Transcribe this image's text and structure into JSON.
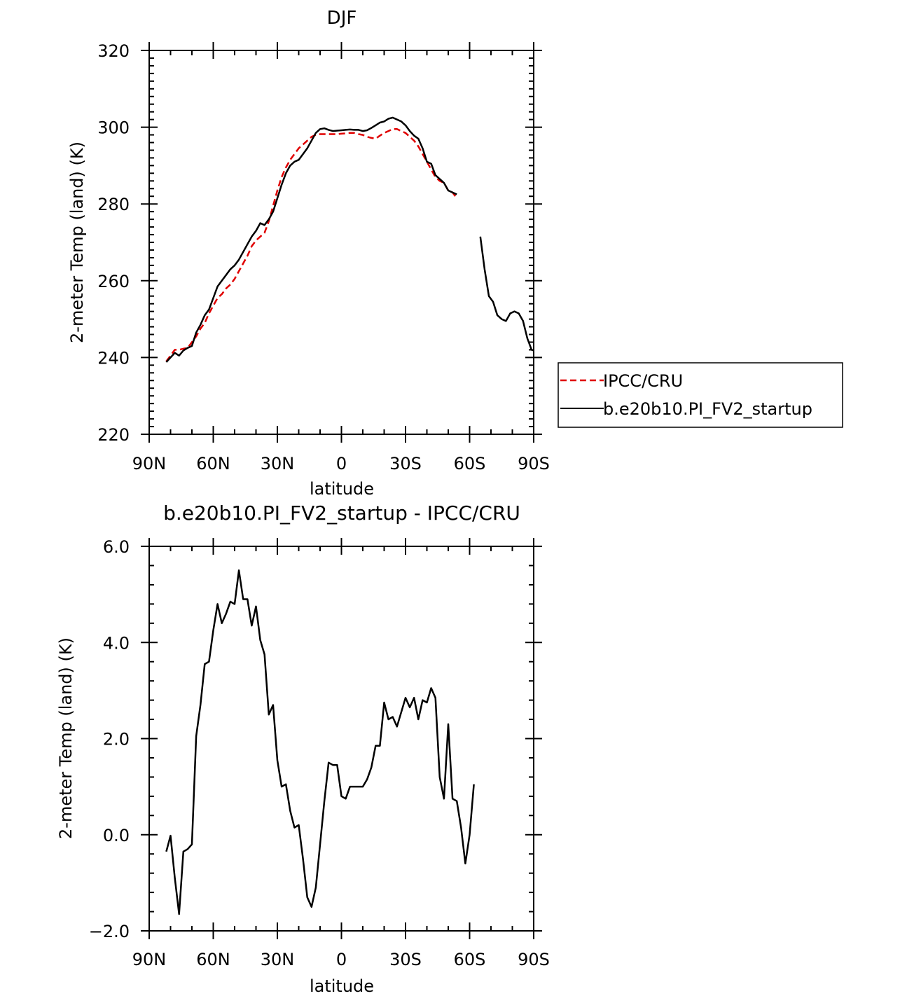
{
  "chart_data": [
    {
      "type": "line",
      "title": "DJF",
      "xlabel": "latitude",
      "ylabel": "2-meter Temp (land) (K)",
      "xlim": [
        90,
        -90
      ],
      "ylim": [
        220,
        320
      ],
      "x_ticks": [
        {
          "value": 90,
          "label": "90N"
        },
        {
          "value": 60,
          "label": "60N"
        },
        {
          "value": 30,
          "label": "30N"
        },
        {
          "value": 0,
          "label": "0"
        },
        {
          "value": -30,
          "label": "30S"
        },
        {
          "value": -60,
          "label": "60S"
        },
        {
          "value": -90,
          "label": "90S"
        }
      ],
      "y_ticks": [
        {
          "value": 220,
          "label": "220"
        },
        {
          "value": 240,
          "label": "240"
        },
        {
          "value": 260,
          "label": "260"
        },
        {
          "value": 280,
          "label": "280"
        },
        {
          "value": 300,
          "label": "300"
        },
        {
          "value": 320,
          "label": "320"
        }
      ],
      "legend_position": "outside-right",
      "series": [
        {
          "name": "IPCC/CRU",
          "color": "#e00000",
          "style": "dashed",
          "segments": [
            [
              [
                82,
                239.0
              ],
              [
                80,
                240.5
              ],
              [
                78,
                242.0
              ],
              [
                76,
                242.0
              ],
              [
                74,
                242.3
              ],
              [
                72,
                242.5
              ],
              [
                70,
                244.0
              ],
              [
                68,
                245.5
              ],
              [
                66,
                247.5
              ],
              [
                64,
                249.0
              ],
              [
                62,
                251.5
              ],
              [
                60,
                253.5
              ],
              [
                58,
                255.5
              ],
              [
                56,
                256.5
              ],
              [
                54,
                258.0
              ],
              [
                52,
                259.0
              ],
              [
                50,
                260.5
              ],
              [
                48,
                262.5
              ],
              [
                46,
                264.5
              ],
              [
                44,
                266.5
              ],
              [
                42,
                269.0
              ],
              [
                40,
                270.5
              ],
              [
                38,
                271.5
              ],
              [
                36,
                272.5
              ],
              [
                34,
                275.5
              ],
              [
                32,
                279.5
              ],
              [
                30,
                283.5
              ],
              [
                28,
                287.0
              ],
              [
                26,
                289.5
              ],
              [
                24,
                291.5
              ],
              [
                22,
                293.0
              ],
              [
                20,
                294.5
              ],
              [
                18,
                295.5
              ],
              [
                16,
                296.5
              ],
              [
                14,
                297.5
              ],
              [
                12,
                298.0
              ],
              [
                10,
                298.2
              ],
              [
                8,
                298.2
              ],
              [
                6,
                298.2
              ],
              [
                4,
                298.2
              ],
              [
                2,
                298.2
              ],
              [
                0,
                298.3
              ],
              [
                -2,
                298.4
              ],
              [
                -4,
                298.5
              ],
              [
                -6,
                298.5
              ],
              [
                -8,
                298.2
              ],
              [
                -10,
                298.0
              ],
              [
                -12,
                297.5
              ],
              [
                -14,
                297.2
              ],
              [
                -16,
                297.0
              ],
              [
                -18,
                297.8
              ],
              [
                -20,
                298.5
              ],
              [
                -22,
                299.0
              ],
              [
                -24,
                299.5
              ],
              [
                -26,
                299.5
              ],
              [
                -28,
                299.0
              ],
              [
                -30,
                298.5
              ],
              [
                -32,
                297.5
              ],
              [
                -34,
                296.5
              ],
              [
                -36,
                295.0
              ],
              [
                -38,
                293.0
              ],
              [
                -40,
                291.0
              ],
              [
                -42,
                289.0
              ],
              [
                -44,
                287.0
              ],
              [
                -46,
                286.0
              ],
              [
                -48,
                285.5
              ],
              [
                -50,
                283.5
              ],
              [
                -52,
                283.0
              ],
              [
                -54,
                281.5
              ]
            ]
          ]
        },
        {
          "name": "b.e20b10.PI_FV2_startup",
          "color": "#000000",
          "style": "solid",
          "segments": [
            [
              [
                82,
                238.8
              ],
              [
                80,
                240.0
              ],
              [
                78,
                241.2
              ],
              [
                76,
                240.5
              ],
              [
                74,
                241.8
              ],
              [
                72,
                242.5
              ],
              [
                70,
                243.0
              ],
              [
                68,
                246.5
              ],
              [
                66,
                248.5
              ],
              [
                64,
                251.0
              ],
              [
                62,
                252.5
              ],
              [
                60,
                255.5
              ],
              [
                58,
                258.5
              ],
              [
                56,
                260.0
              ],
              [
                54,
                261.5
              ],
              [
                52,
                263.0
              ],
              [
                50,
                264.0
              ],
              [
                48,
                265.5
              ],
              [
                46,
                267.5
              ],
              [
                44,
                269.5
              ],
              [
                42,
                271.5
              ],
              [
                40,
                273.0
              ],
              [
                38,
                275.0
              ],
              [
                36,
                274.5
              ],
              [
                34,
                276.0
              ],
              [
                32,
                278.0
              ],
              [
                30,
                281.5
              ],
              [
                28,
                285.0
              ],
              [
                26,
                288.0
              ],
              [
                24,
                290.0
              ],
              [
                22,
                291.0
              ],
              [
                20,
                291.5
              ],
              [
                18,
                293.0
              ],
              [
                16,
                294.5
              ],
              [
                14,
                296.5
              ],
              [
                12,
                298.5
              ],
              [
                10,
                299.5
              ],
              [
                8,
                299.7
              ],
              [
                6,
                299.3
              ],
              [
                4,
                299.0
              ],
              [
                2,
                299.1
              ],
              [
                0,
                299.2
              ],
              [
                -2,
                299.3
              ],
              [
                -4,
                299.4
              ],
              [
                -6,
                299.3
              ],
              [
                -8,
                299.3
              ],
              [
                -10,
                299.0
              ],
              [
                -12,
                299.2
              ],
              [
                -14,
                299.8
              ],
              [
                -16,
                300.5
              ],
              [
                -18,
                301.2
              ],
              [
                -20,
                301.5
              ],
              [
                -22,
                302.2
              ],
              [
                -24,
                302.5
              ],
              [
                -26,
                302.0
              ],
              [
                -28,
                301.5
              ],
              [
                -30,
                300.5
              ],
              [
                -32,
                299.0
              ],
              [
                -34,
                297.8
              ],
              [
                -36,
                297.0
              ],
              [
                -38,
                294.5
              ],
              [
                -40,
                291.0
              ],
              [
                -42,
                290.5
              ],
              [
                -44,
                287.5
              ],
              [
                -46,
                286.5
              ],
              [
                -48,
                285.5
              ],
              [
                -50,
                283.5
              ],
              [
                -52,
                283.0
              ],
              [
                -54,
                282.5
              ]
            ],
            [
              [
                -65,
                271.5
              ],
              [
                -67,
                263.0
              ],
              [
                -69,
                256.0
              ],
              [
                -71,
                254.5
              ],
              [
                -73,
                251.0
              ],
              [
                -75,
                250.0
              ],
              [
                -77,
                249.5
              ],
              [
                -79,
                251.5
              ],
              [
                -81,
                252.0
              ],
              [
                -83,
                251.5
              ],
              [
                -85,
                249.5
              ],
              [
                -87,
                245.0
              ],
              [
                -89,
                242.0
              ],
              [
                -90,
                241.8
              ]
            ]
          ]
        }
      ]
    },
    {
      "type": "line",
      "title": "b.e20b10.PI_FV2_startup - IPCC/CRU",
      "xlabel": "latitude",
      "ylabel": "2-meter Temp (land) (K)",
      "xlim": [
        90,
        -90
      ],
      "ylim": [
        -2,
        6
      ],
      "x_ticks": [
        {
          "value": 90,
          "label": "90N"
        },
        {
          "value": 60,
          "label": "60N"
        },
        {
          "value": 30,
          "label": "30N"
        },
        {
          "value": 0,
          "label": "0"
        },
        {
          "value": -30,
          "label": "30S"
        },
        {
          "value": -60,
          "label": "60S"
        },
        {
          "value": -90,
          "label": "90S"
        }
      ],
      "y_ticks": [
        {
          "value": -2,
          "label": "−2.0"
        },
        {
          "value": 0,
          "label": "0.0"
        },
        {
          "value": 2,
          "label": "2.0"
        },
        {
          "value": 4,
          "label": "4.0"
        },
        {
          "value": 6,
          "label": "6.0"
        }
      ],
      "series": [
        {
          "color": "#000000",
          "style": "solid",
          "segments": [
            [
              [
                82,
                -0.35
              ],
              [
                80,
                -0.02
              ],
              [
                78,
                -0.9
              ],
              [
                76,
                -1.65
              ],
              [
                74,
                -0.35
              ],
              [
                72,
                -0.3
              ],
              [
                70,
                -0.2
              ],
              [
                68,
                2.05
              ],
              [
                66,
                2.7
              ],
              [
                64,
                3.55
              ],
              [
                62,
                3.6
              ],
              [
                60,
                4.25
              ],
              [
                58,
                4.8
              ],
              [
                56,
                4.4
              ],
              [
                54,
                4.6
              ],
              [
                52,
                4.85
              ],
              [
                50,
                4.8
              ],
              [
                48,
                5.5
              ],
              [
                46,
                4.9
              ],
              [
                44,
                4.9
              ],
              [
                42,
                4.35
              ],
              [
                40,
                4.75
              ],
              [
                38,
                4.05
              ],
              [
                36,
                3.75
              ],
              [
                34,
                2.5
              ],
              [
                32,
                2.7
              ],
              [
                30,
                1.55
              ],
              [
                28,
                1.0
              ],
              [
                26,
                1.05
              ],
              [
                24,
                0.5
              ],
              [
                22,
                0.15
              ],
              [
                20,
                0.2
              ],
              [
                18,
                -0.5
              ],
              [
                16,
                -1.3
              ],
              [
                14,
                -1.5
              ],
              [
                12,
                -1.1
              ],
              [
                10,
                -0.2
              ],
              [
                8,
                0.7
              ],
              [
                6,
                1.5
              ],
              [
                4,
                1.45
              ],
              [
                2,
                1.45
              ],
              [
                0,
                0.8
              ],
              [
                -2,
                0.75
              ],
              [
                -4,
                1.0
              ],
              [
                -6,
                1.0
              ],
              [
                -8,
                1.0
              ],
              [
                -10,
                1.0
              ],
              [
                -12,
                1.15
              ],
              [
                -14,
                1.4
              ],
              [
                -16,
                1.85
              ],
              [
                -18,
                1.85
              ],
              [
                -20,
                2.75
              ],
              [
                -22,
                2.4
              ],
              [
                -24,
                2.45
              ],
              [
                -26,
                2.25
              ],
              [
                -28,
                2.55
              ],
              [
                -30,
                2.85
              ],
              [
                -32,
                2.65
              ],
              [
                -34,
                2.85
              ],
              [
                -36,
                2.4
              ],
              [
                -38,
                2.8
              ],
              [
                -40,
                2.75
              ],
              [
                -42,
                3.05
              ],
              [
                -44,
                2.85
              ],
              [
                -46,
                1.2
              ],
              [
                -48,
                0.75
              ],
              [
                -50,
                2.3
              ],
              [
                -52,
                0.75
              ],
              [
                -54,
                0.7
              ],
              [
                -56,
                0.15
              ],
              [
                -58,
                -0.6
              ],
              [
                -60,
                0.0
              ],
              [
                -62,
                1.05
              ]
            ]
          ]
        }
      ]
    }
  ]
}
